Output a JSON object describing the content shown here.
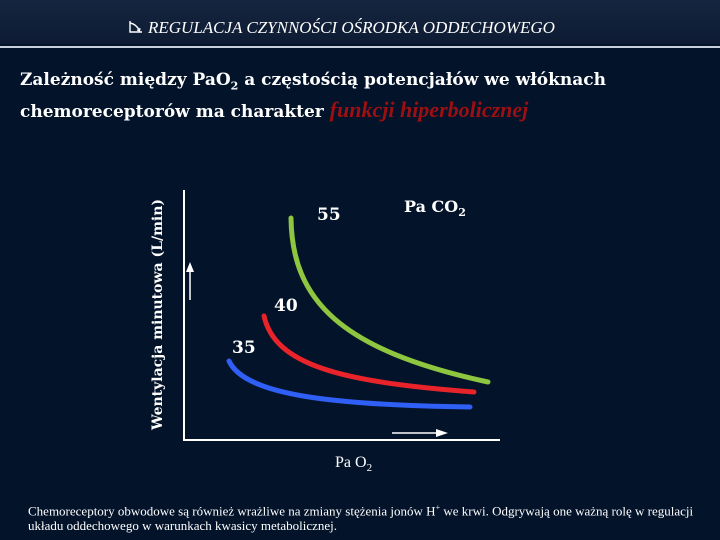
{
  "header": {
    "title": "REGULACJA CZYNNOŚCI OŚRODKA ODDECHOWEGO",
    "icon": "curved-arrow-icon"
  },
  "intro": {
    "text": "Zależność między PaO",
    "sub": "2",
    "text2": " a częstością potencjałów we włóknach chemoreceptorów ma charakter ",
    "highlight": "funkcji hiperbolicznej"
  },
  "diagram": {
    "y_axis_label": "Wentylacja minutowa (L/min)",
    "x_axis_label": "Pa O",
    "x_axis_sub": "2",
    "legend_title": "Pa CO",
    "legend_sub": "2",
    "curves": [
      {
        "label": "55",
        "color": "#8ec63f"
      },
      {
        "label": "40",
        "color": "#e8242a"
      },
      {
        "label": "35",
        "color": "#2f5ff5"
      }
    ]
  },
  "footnote": {
    "text": "Chemoreceptory obwodowe są również wrażliwe na zmiany stężenia jonów H",
    "sup": "+",
    "text2": " we krwi. Odgrywają one ważną rolę w regulacji układu oddechowego w warunkach kwasicy metabolicznej."
  }
}
